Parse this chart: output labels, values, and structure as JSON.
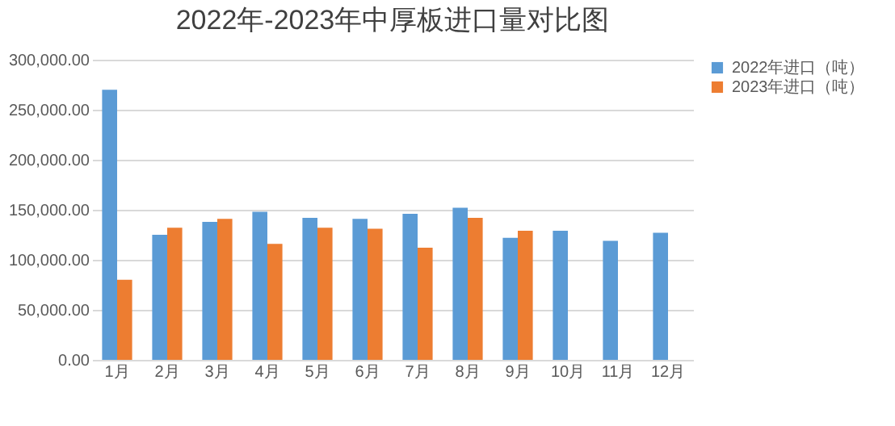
{
  "chart_data": {
    "type": "bar",
    "title": "2022年-2023年中厚板进口量对比图",
    "categories": [
      "1月",
      "2月",
      "3月",
      "4月",
      "5月",
      "6月",
      "7月",
      "8月",
      "9月",
      "10月",
      "11月",
      "12月"
    ],
    "series": [
      {
        "name": "2022年进口（吨）",
        "color": "#5b9bd5",
        "values": [
          270000,
          125000,
          138000,
          148000,
          142000,
          141000,
          146000,
          152000,
          122000,
          129000,
          119000,
          127000
        ]
      },
      {
        "name": "2023年进口（吨）",
        "color": "#ed7d31",
        "values": [
          80000,
          132000,
          141000,
          116000,
          132000,
          131000,
          112000,
          142000,
          129000,
          null,
          null,
          null
        ]
      }
    ],
    "ylim": [
      0,
      300000
    ],
    "yticks": [
      {
        "value": 0,
        "label": "0.00"
      },
      {
        "value": 50000,
        "label": "50,000.00"
      },
      {
        "value": 100000,
        "label": "100,000.00"
      },
      {
        "value": 150000,
        "label": "150,000.00"
      },
      {
        "value": 200000,
        "label": "200,000.00"
      },
      {
        "value": 250000,
        "label": "250,000.00"
      },
      {
        "value": 300000,
        "label": "300,000.00"
      }
    ],
    "grid": "y",
    "legend": "right"
  }
}
